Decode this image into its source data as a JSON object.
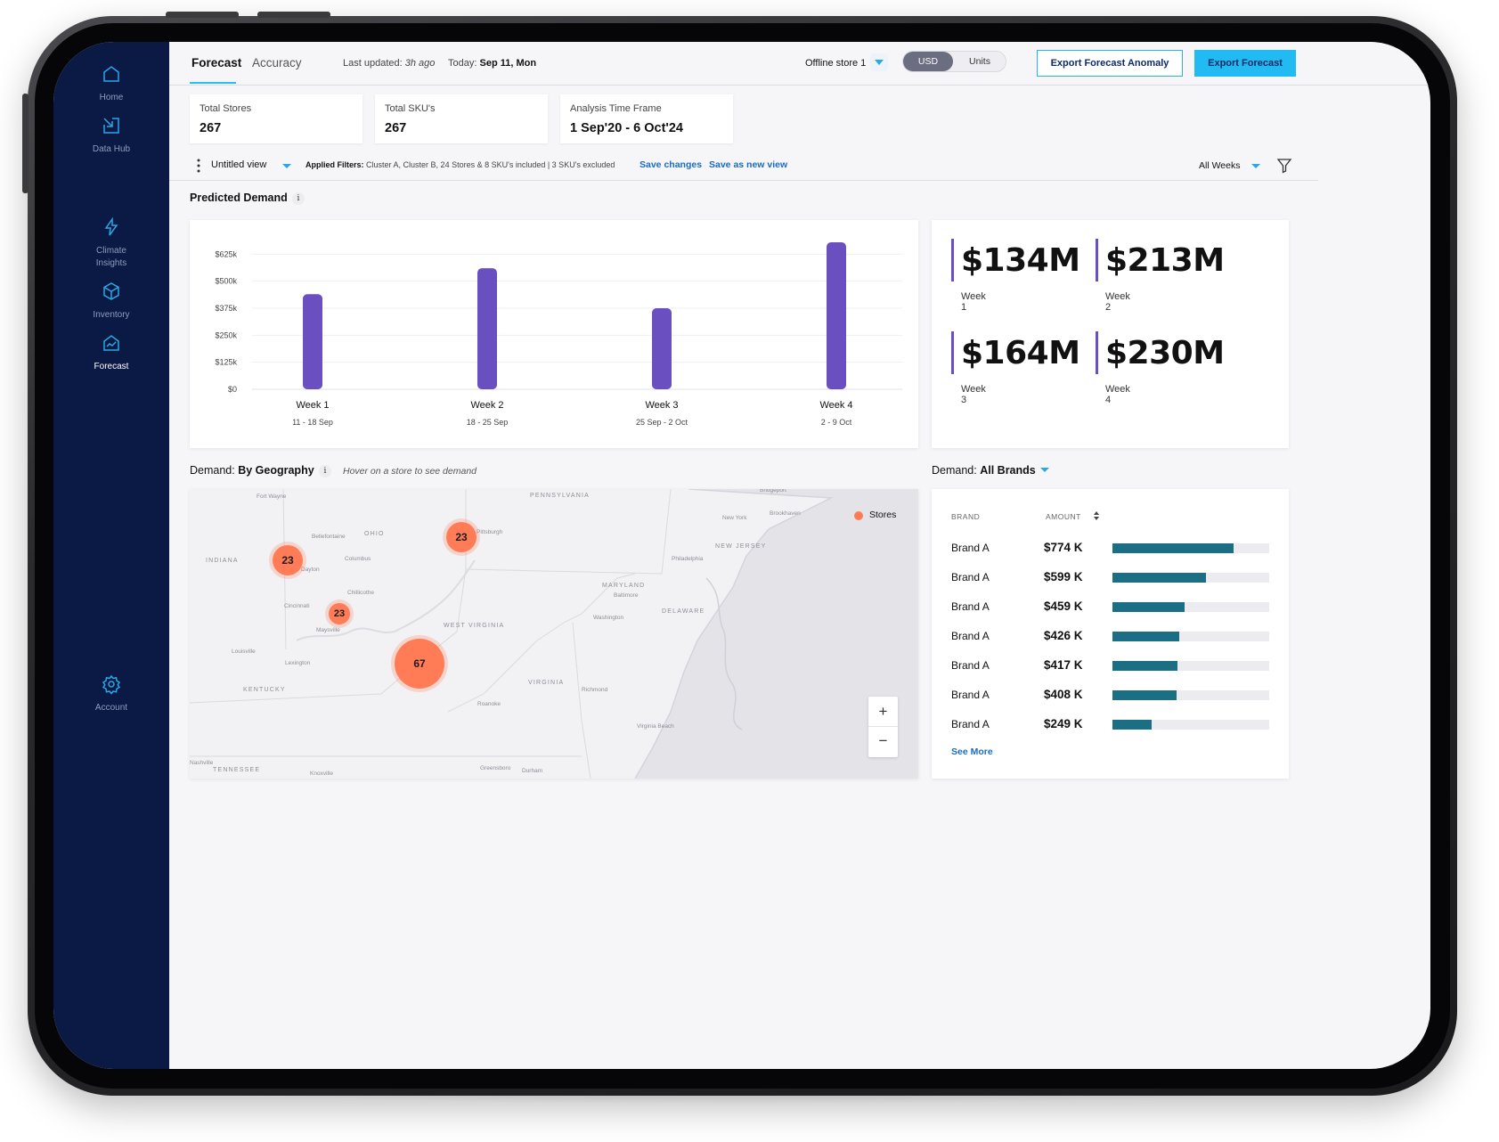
{
  "sidebar": {
    "items": [
      {
        "label": "Home",
        "icon": "home-icon"
      },
      {
        "label": "Data Hub",
        "icon": "data-hub-icon"
      },
      {
        "label": "Climate\nInsights",
        "icon": "lightning-icon"
      },
      {
        "label": "Inventory",
        "icon": "cube-icon"
      },
      {
        "label": "Forecast",
        "icon": "forecast-icon",
        "active": true
      },
      {
        "label": "Account",
        "icon": "gear-icon"
      }
    ]
  },
  "topbar": {
    "tabs": [
      {
        "label": "Forecast",
        "active": true
      },
      {
        "label": "Accuracy"
      }
    ],
    "last_updated_label": "Last updated:",
    "last_updated_value": "3h ago",
    "today_label": "Today:",
    "today_value": "Sep 11, Mon",
    "store": "Offline store 1",
    "toggle": {
      "usd": "USD",
      "units": "Units",
      "selected": "USD"
    },
    "export_anomaly": "Export Forecast Anomaly",
    "export_forecast": "Export Forecast"
  },
  "stats": [
    {
      "label": "Total Stores",
      "value": "267"
    },
    {
      "label": "Total SKU's",
      "value": "267"
    },
    {
      "label": "Analysis Time Frame",
      "value": "1 Sep'20 - 6 Oct'24"
    }
  ],
  "filterbar": {
    "view_name": "Untitled view",
    "applied_label": "Applied Filters:",
    "applied_value": "Cluster A, Cluster B, 24 Stores & 8 SKU's included | 3 SKU's excluded",
    "save_changes": "Save changes",
    "save_new": "Save as new view",
    "weeks": "All Weeks"
  },
  "predicted_demand": {
    "title": "Predicted Demand",
    "info": "i"
  },
  "chart_data": {
    "type": "bar",
    "categories": [
      "Week 1",
      "Week 2",
      "Week 3",
      "Week 4"
    ],
    "sublabels": [
      "11 - 18 Sep",
      "18 - 25 Sep",
      "25 Sep - 2 Oct",
      "2 - 9 Oct"
    ],
    "values": [
      440,
      560,
      375,
      680
    ],
    "y_ticks": [
      "$0",
      "$125k",
      "$250k",
      "$375k",
      "$500k",
      "$625k"
    ],
    "ylim": [
      0,
      680
    ],
    "grid": true,
    "bar_color": "#6a4fc0"
  },
  "kpis": [
    {
      "value": "$134M",
      "label": "Week 1"
    },
    {
      "value": "$213M",
      "label": "Week 2"
    },
    {
      "value": "$164M",
      "label": "Week 3"
    },
    {
      "value": "$230M",
      "label": "Week 4"
    }
  ],
  "geography": {
    "prefix": "Demand:",
    "title": "By Geography",
    "info": "i",
    "hint": "Hover on a store to see demand",
    "legend": "Stores",
    "zoom_in": "+",
    "zoom_out": "−",
    "clusters": [
      "23",
      "23",
      "23",
      "67"
    ],
    "places": [
      "Fort Wayne",
      "Bellefontaine",
      "OHIO",
      "Columbus",
      "INDIANA",
      "Dayton",
      "Chillicothe",
      "Cincinnati",
      "Maysville",
      "Louisville",
      "Lexington",
      "KENTUCKY",
      "Pittsburgh",
      "PENNSYLVANIA",
      "New York",
      "Bridgeport",
      "Brookhaven",
      "NEW JERSEY",
      "Philadelphia",
      "MARYLAND",
      "Baltimore",
      "Washington",
      "DELAWARE",
      "WEST VIRGINIA",
      "VIRGINIA",
      "Richmond",
      "Roanoke",
      "Virginia Beach",
      "Greensboro",
      "Durham",
      "Knoxville",
      "Nashville",
      "TENNESSEE"
    ]
  },
  "brands": {
    "prefix": "Demand:",
    "title": "All Brands",
    "col_brand": "BRAND",
    "col_amount": "AMOUNT",
    "rows": [
      {
        "name": "Brand A",
        "amount": "$774 K",
        "value": 774
      },
      {
        "name": "Brand A",
        "amount": "$599 K",
        "value": 599
      },
      {
        "name": "Brand A",
        "amount": "$459 K",
        "value": 459
      },
      {
        "name": "Brand A",
        "amount": "$426 K",
        "value": 426
      },
      {
        "name": "Brand A",
        "amount": "$417 K",
        "value": 417
      },
      {
        "name": "Brand A",
        "amount": "$408 K",
        "value": 408
      },
      {
        "name": "Brand A",
        "amount": "$249 K",
        "value": 249
      }
    ],
    "see_more": "See More"
  },
  "colors": {
    "sidebar": "#0b1a45",
    "accent": "#22baf3",
    "bar": "#6a4fc0",
    "brand_bar": "#1a6f85",
    "cluster": "#ff7c57"
  }
}
